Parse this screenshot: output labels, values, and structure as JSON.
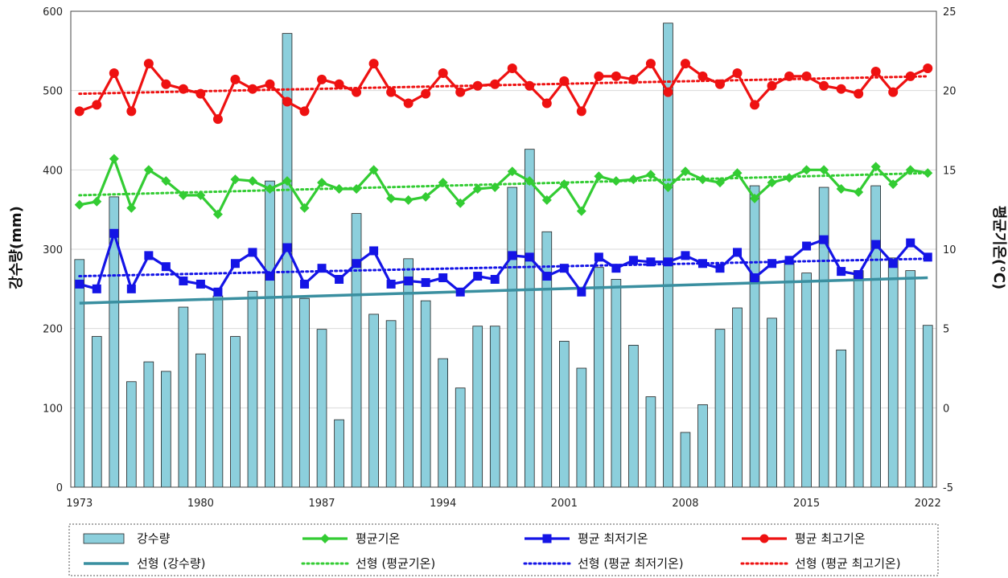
{
  "chart_data": {
    "type": "bar",
    "ylabel": "강수량(mm)",
    "y2label": "평균기온(℃)",
    "ylim": [
      0,
      600
    ],
    "y2lim": [
      -5,
      25
    ],
    "yticks": [
      0,
      100,
      200,
      300,
      400,
      500,
      600
    ],
    "y2ticks": [
      -5,
      0,
      5,
      10,
      15,
      20,
      25
    ],
    "x": [
      1973,
      1974,
      1975,
      1976,
      1977,
      1978,
      1979,
      1980,
      1981,
      1982,
      1983,
      1984,
      1985,
      1986,
      1987,
      1988,
      1989,
      1990,
      1991,
      1992,
      1993,
      1994,
      1995,
      1996,
      1997,
      1998,
      1999,
      2000,
      2001,
      2002,
      2003,
      2004,
      2005,
      2006,
      2007,
      2008,
      2009,
      2010,
      2011,
      2012,
      2013,
      2014,
      2015,
      2016,
      2017,
      2018,
      2019,
      2020,
      2021,
      2022
    ],
    "xticks": [
      1973,
      1980,
      1987,
      1994,
      2001,
      2008,
      2015,
      2022
    ],
    "grid": true,
    "legend_position": "bottom",
    "colors": {
      "bar_fill": "#8ccfdc",
      "bar_stroke": "#222222",
      "avg": "#33cc33",
      "min": "#1414e6",
      "max": "#ee1111",
      "trend_precip": "#3a8fa0"
    },
    "series": [
      {
        "name": "강수량",
        "kind": "bar",
        "axis": "left",
        "values": [
          287,
          190,
          366,
          133,
          158,
          146,
          227,
          168,
          241,
          190,
          247,
          386,
          572,
          238,
          199,
          85,
          345,
          218,
          210,
          288,
          235,
          162,
          125,
          203,
          203,
          378,
          426,
          322,
          184,
          150,
          277,
          262,
          179,
          114,
          585,
          69,
          104,
          199,
          226,
          380,
          213,
          284,
          270,
          378,
          173,
          273,
          380,
          289,
          273,
          204
        ]
      },
      {
        "name": "평균기온",
        "kind": "line",
        "marker": "diamond",
        "axis": "right",
        "values": [
          12.8,
          13,
          15.7,
          12.6,
          15,
          14.3,
          13.4,
          13.4,
          12.2,
          14.4,
          14.3,
          13.8,
          14.3,
          12.6,
          14.2,
          13.8,
          13.8,
          15,
          13.2,
          13.1,
          13.3,
          14.2,
          12.9,
          13.8,
          13.9,
          14.9,
          14.3,
          13.1,
          14.1,
          12.4,
          14.6,
          14.3,
          14.4,
          14.7,
          13.9,
          14.9,
          14.4,
          14.2,
          14.8,
          13.2,
          14.2,
          14.5,
          15,
          15,
          13.8,
          13.6,
          15.2,
          14.1,
          15,
          14.8
        ]
      },
      {
        "name": "평균 최저기온",
        "kind": "line",
        "marker": "square",
        "axis": "right",
        "values": [
          7.8,
          7.5,
          11,
          7.5,
          9.6,
          8.9,
          8,
          7.8,
          7.3,
          9.1,
          9.8,
          8.3,
          10.1,
          7.8,
          8.8,
          8.1,
          9.1,
          9.9,
          7.8,
          8,
          7.9,
          8.2,
          7.3,
          8.3,
          8.1,
          9.6,
          9.5,
          8.3,
          8.8,
          7.3,
          9.5,
          8.8,
          9.3,
          9.2,
          9.2,
          9.6,
          9.1,
          8.8,
          9.8,
          8.2,
          9.1,
          9.3,
          10.2,
          10.6,
          8.6,
          8.4,
          10.3,
          9.1,
          10.4,
          9.5
        ]
      },
      {
        "name": "평균 최고기온",
        "kind": "line",
        "marker": "circle",
        "axis": "right",
        "values": [
          18.7,
          19.1,
          21.1,
          18.7,
          21.7,
          20.4,
          20.1,
          19.8,
          18.2,
          20.7,
          20.1,
          20.4,
          19.3,
          18.7,
          20.7,
          20.4,
          19.9,
          21.7,
          19.9,
          19.2,
          19.8,
          21.1,
          19.9,
          20.3,
          20.4,
          21.4,
          20.3,
          19.2,
          20.6,
          18.7,
          20.9,
          20.9,
          20.7,
          21.7,
          19.9,
          21.7,
          20.9,
          20.4,
          21.1,
          19.1,
          20.3,
          20.9,
          20.9,
          20.3,
          20.1,
          19.8,
          21.2,
          19.9,
          20.9,
          21.4
        ]
      },
      {
        "name": "선형 (강수량)",
        "kind": "trend",
        "axis": "left",
        "start": 232,
        "end": 264
      },
      {
        "name": "선형 (평균기온)",
        "kind": "trend",
        "dotted": true,
        "axis": "right",
        "start": 13.4,
        "end": 14.8
      },
      {
        "name": "선형 (평균 최저기온)",
        "kind": "trend",
        "dotted": true,
        "axis": "right",
        "start": 8.3,
        "end": 9.4
      },
      {
        "name": "선형 (평균 최고기온)",
        "kind": "trend",
        "dotted": true,
        "axis": "right",
        "start": 19.8,
        "end": 20.9
      }
    ]
  }
}
